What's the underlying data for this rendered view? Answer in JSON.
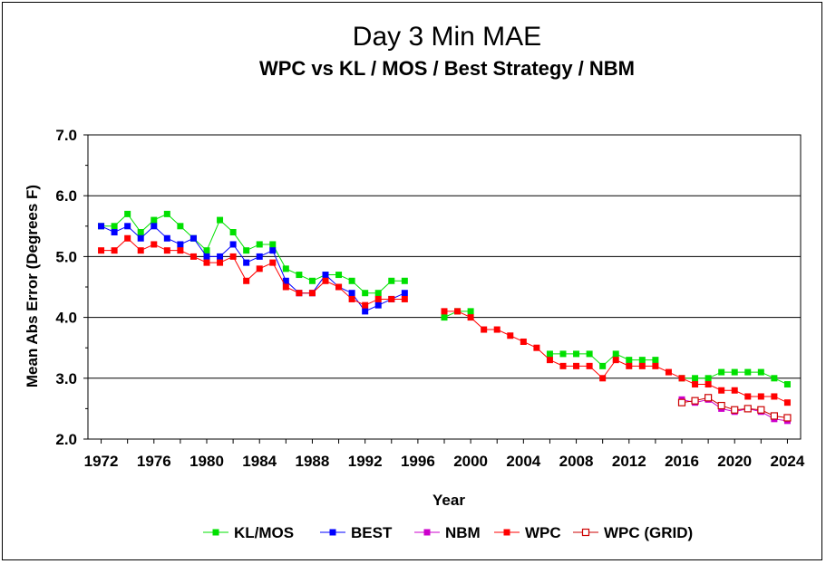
{
  "chart_data": {
    "type": "line",
    "title": "Day 3 Min MAE",
    "subtitle": "WPC vs KL / MOS / Best Strategy / NBM",
    "xlabel": "Year",
    "ylabel": "Mean Abs Error (Degrees F)",
    "xlim": [
      1971,
      2025
    ],
    "ylim": [
      2.0,
      7.0
    ],
    "x_ticks": [
      "1972",
      "1976",
      "1980",
      "1984",
      "1988",
      "1992",
      "1996",
      "2000",
      "2004",
      "2008",
      "2012",
      "2016",
      "2020",
      "2024"
    ],
    "y_ticks": [
      "2.0",
      "3.0",
      "4.0",
      "5.0",
      "6.0",
      "7.0"
    ],
    "grid": "horizontal",
    "legend_position": "bottom",
    "series": [
      {
        "name": "KL/MOS",
        "color": "#00e000",
        "marker": "filled-square",
        "points": [
          [
            1972,
            5.5
          ],
          [
            1973,
            5.5
          ],
          [
            1974,
            5.7
          ],
          [
            1975,
            5.4
          ],
          [
            1976,
            5.6
          ],
          [
            1977,
            5.7
          ],
          [
            1978,
            5.5
          ],
          [
            1979,
            5.3
          ],
          [
            1980,
            5.1
          ],
          [
            1981,
            5.6
          ],
          [
            1982,
            5.4
          ],
          [
            1983,
            5.1
          ],
          [
            1984,
            5.2
          ],
          [
            1985,
            5.2
          ],
          [
            1986,
            4.8
          ],
          [
            1987,
            4.7
          ],
          [
            1988,
            4.6
          ],
          [
            1989,
            4.7
          ],
          [
            1990,
            4.7
          ],
          [
            1991,
            4.6
          ],
          [
            1992,
            4.4
          ],
          [
            1993,
            4.4
          ],
          [
            1994,
            4.6
          ],
          [
            1995,
            4.6
          ],
          [
            1998,
            4.0
          ],
          [
            1999,
            4.1
          ],
          [
            2000,
            4.1
          ],
          [
            2006,
            3.4
          ],
          [
            2007,
            3.4
          ],
          [
            2008,
            3.4
          ],
          [
            2009,
            3.4
          ],
          [
            2010,
            3.2
          ],
          [
            2011,
            3.4
          ],
          [
            2012,
            3.3
          ],
          [
            2013,
            3.3
          ],
          [
            2014,
            3.3
          ],
          [
            2016,
            3.0
          ],
          [
            2017,
            3.0
          ],
          [
            2018,
            3.0
          ],
          [
            2019,
            3.1
          ],
          [
            2020,
            3.1
          ],
          [
            2021,
            3.1
          ],
          [
            2022,
            3.1
          ],
          [
            2023,
            3.0
          ],
          [
            2024,
            2.9
          ]
        ]
      },
      {
        "name": "BEST",
        "color": "#0000ff",
        "marker": "filled-square",
        "points": [
          [
            1972,
            5.5
          ],
          [
            1973,
            5.4
          ],
          [
            1974,
            5.5
          ],
          [
            1975,
            5.3
          ],
          [
            1976,
            5.5
          ],
          [
            1977,
            5.3
          ],
          [
            1978,
            5.2
          ],
          [
            1979,
            5.3
          ],
          [
            1980,
            5.0
          ],
          [
            1981,
            5.0
          ],
          [
            1982,
            5.2
          ],
          [
            1983,
            4.9
          ],
          [
            1984,
            5.0
          ],
          [
            1985,
            5.1
          ],
          [
            1986,
            4.6
          ],
          [
            1987,
            4.4
          ],
          [
            1988,
            4.4
          ],
          [
            1989,
            4.7
          ],
          [
            1990,
            4.5
          ],
          [
            1991,
            4.4
          ],
          [
            1992,
            4.1
          ],
          [
            1993,
            4.2
          ],
          [
            1994,
            4.3
          ],
          [
            1995,
            4.4
          ]
        ]
      },
      {
        "name": "NBM",
        "color": "#cc00cc",
        "marker": "filled-square",
        "points": [
          [
            2016,
            2.65
          ],
          [
            2017,
            2.6
          ],
          [
            2018,
            2.65
          ],
          [
            2019,
            2.5
          ],
          [
            2020,
            2.45
          ],
          [
            2021,
            2.5
          ],
          [
            2022,
            2.45
          ],
          [
            2023,
            2.33
          ],
          [
            2024,
            2.3
          ]
        ]
      },
      {
        "name": "WPC",
        "color": "#ff0000",
        "marker": "filled-square",
        "points": [
          [
            1972,
            5.1
          ],
          [
            1973,
            5.1
          ],
          [
            1974,
            5.3
          ],
          [
            1975,
            5.1
          ],
          [
            1976,
            5.2
          ],
          [
            1977,
            5.1
          ],
          [
            1978,
            5.1
          ],
          [
            1979,
            5.0
          ],
          [
            1980,
            4.9
          ],
          [
            1981,
            4.9
          ],
          [
            1982,
            5.0
          ],
          [
            1983,
            4.6
          ],
          [
            1984,
            4.8
          ],
          [
            1985,
            4.9
          ],
          [
            1986,
            4.5
          ],
          [
            1987,
            4.4
          ],
          [
            1988,
            4.4
          ],
          [
            1989,
            4.6
          ],
          [
            1990,
            4.5
          ],
          [
            1991,
            4.3
          ],
          [
            1992,
            4.2
          ],
          [
            1993,
            4.3
          ],
          [
            1994,
            4.3
          ],
          [
            1995,
            4.3
          ],
          [
            1998,
            4.1
          ],
          [
            1999,
            4.1
          ],
          [
            2000,
            4.0
          ],
          [
            2001,
            3.8
          ],
          [
            2002,
            3.8
          ],
          [
            2003,
            3.7
          ],
          [
            2004,
            3.6
          ],
          [
            2005,
            3.5
          ],
          [
            2006,
            3.3
          ],
          [
            2007,
            3.2
          ],
          [
            2008,
            3.2
          ],
          [
            2009,
            3.2
          ],
          [
            2010,
            3.0
          ],
          [
            2011,
            3.3
          ],
          [
            2012,
            3.2
          ],
          [
            2013,
            3.2
          ],
          [
            2014,
            3.2
          ],
          [
            2015,
            3.1
          ],
          [
            2016,
            3.0
          ],
          [
            2017,
            2.9
          ],
          [
            2018,
            2.9
          ],
          [
            2019,
            2.8
          ],
          [
            2020,
            2.8
          ],
          [
            2021,
            2.7
          ],
          [
            2022,
            2.7
          ],
          [
            2023,
            2.7
          ],
          [
            2024,
            2.6
          ]
        ]
      },
      {
        "name": "WPC (GRID)",
        "color": "#cc0000",
        "marker": "open-square",
        "points": [
          [
            2016,
            2.6
          ],
          [
            2017,
            2.63
          ],
          [
            2018,
            2.68
          ],
          [
            2019,
            2.55
          ],
          [
            2020,
            2.48
          ],
          [
            2021,
            2.5
          ],
          [
            2022,
            2.48
          ],
          [
            2023,
            2.38
          ],
          [
            2024,
            2.35
          ]
        ]
      }
    ]
  }
}
